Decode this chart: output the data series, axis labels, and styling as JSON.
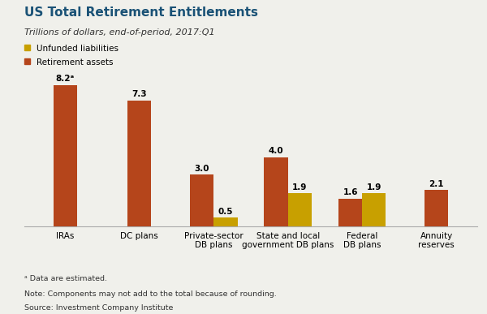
{
  "title": "US Total Retirement Entitlements",
  "subtitle": "Trillions of dollars, end-of-period, 2017:Q1",
  "categories": [
    "IRAs",
    "DC plans",
    "Private-sector\nDB plans",
    "State and local\ngovernment DB plans",
    "Federal\nDB plans",
    "Annuity\nreserves"
  ],
  "retirement_assets": [
    8.2,
    7.3,
    3.0,
    4.0,
    1.6,
    2.1
  ],
  "unfunded_liabilities": [
    null,
    null,
    0.5,
    1.9,
    1.9,
    null
  ],
  "retirement_assets_labels": [
    "8.2ᵃ",
    "7.3",
    "3.0",
    "4.0",
    "1.6",
    "2.1"
  ],
  "unfunded_liabilities_labels": [
    "",
    "",
    "0.5",
    "1.9",
    "1.9",
    ""
  ],
  "bar_color_assets": "#b5451b",
  "bar_color_unfunded": "#c8a000",
  "background_color": "#f0f0eb",
  "title_color": "#1a5276",
  "legend_labels": [
    "Unfunded liabilities",
    "Retirement assets"
  ],
  "footnote1": "ᵃ Data are estimated.",
  "footnote2": "Note: Components may not add to the total because of rounding.",
  "footnote3": "Source: Investment Company Institute",
  "ylim": [
    0,
    9.5
  ],
  "bar_width": 0.32
}
